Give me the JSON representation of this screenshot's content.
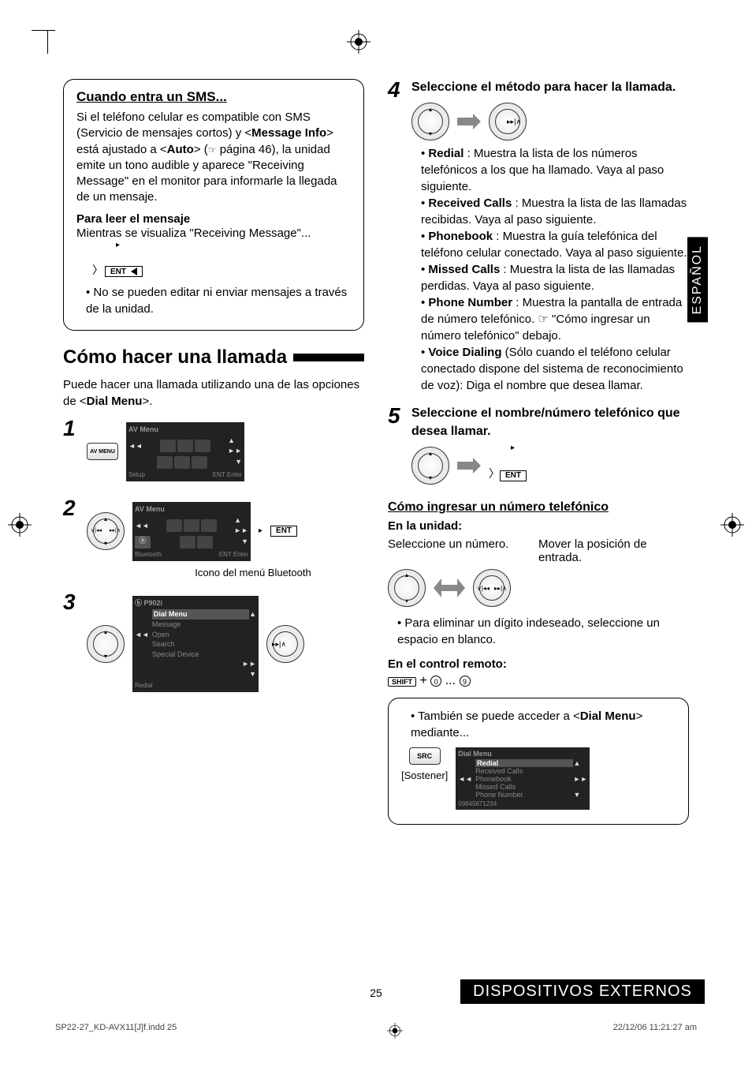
{
  "page_number": "25",
  "side_tab": "ESPAÑOL",
  "footer_band": "DISPOSITIVOS EXTERNOS",
  "print_footer_left": "SP22-27_KD-AVX11[J]f.indd   25",
  "print_footer_right": "22/12/06   11:21:27 am",
  "sms_box": {
    "title": "Cuando entra un SMS...",
    "para": "Si el teléfono celular es compatible con SMS (Servicio de mensajes cortos) y <Message Info> está ajustado a <Auto> (☞ página 46), la unidad emite un tono audible y aparece \"Receiving Message\" en el monitor para informarle la llegada de un mensaje.",
    "sub": "Para leer el mensaje",
    "sub_para": "Mientras se visualiza \"Receiving Message\"...",
    "ent_label": "ENT",
    "bullet": "No se pueden editar ni enviar mensajes a través de la unidad."
  },
  "call_section": {
    "title": "Cómo hacer una llamada",
    "intro": "Puede hacer una llamada utilizando una de las opciones de <Dial Menu>.",
    "bt_caption": "Icono del menú Bluetooth",
    "av_menu_btn": "AV MENU",
    "screen1": {
      "title": "AV Menu",
      "foot_l": "Setup",
      "foot_r": "ENT Enter"
    },
    "screen2": {
      "title": "AV Menu",
      "foot_l": "Bluetooth",
      "foot_r": "ENT Enter"
    },
    "screen3": {
      "device": "P902i",
      "items": [
        "Dial Menu",
        "Message",
        "Open",
        "Search",
        "Special Device"
      ],
      "foot": "Redial"
    }
  },
  "step4": {
    "title": "Seleccione el método para hacer la llamada.",
    "items": [
      {
        "b": "Redial",
        "t": " : Muestra la lista de los números telefónicos a los que ha llamado. Vaya al paso siguiente."
      },
      {
        "b": "Received Calls",
        "t": " : Muestra la lista de las llamadas recibidas. Vaya al paso siguiente."
      },
      {
        "b": "Phonebook",
        "t": " : Muestra la guía telefónica del teléfono celular conectado. Vaya al paso siguiente."
      },
      {
        "b": "Missed Calls",
        "t": " : Muestra la lista de las llamadas perdidas. Vaya al paso siguiente."
      },
      {
        "b": "Phone Number",
        "t": " : Muestra la pantalla de entrada de número telefónico. ☞ \"Cómo ingresar un número telefónico\" debajo."
      },
      {
        "b": "Voice Dialing",
        "t": " (Sólo cuando el teléfono celular conectado dispone del sistema de reconocimiento de voz): Diga el nombre que desea llamar."
      }
    ]
  },
  "step5": {
    "title": "Seleccione el nombre/número telefónico que desea llamar.",
    "ent_label": "ENT"
  },
  "enter_number": {
    "title": "Cómo ingresar un número telefónico",
    "unit_hdr": "En la unidad:",
    "col_l": "Seleccione un número.",
    "col_r": "Mover la posición de entrada.",
    "bullet": "Para eliminar un dígito indeseado, seleccione un espacio en blanco.",
    "remote_hdr": "En el control remoto:",
    "shift": "SHIFT",
    "plus": " + ",
    "n0": "0",
    "dots": "...",
    "n9": "9"
  },
  "also_box": {
    "line": "También se puede acceder a <Dial Menu> mediante...",
    "src": "SRC",
    "hold": "[Sostener]",
    "screen": {
      "title": "Dial Menu",
      "items": [
        "Redial",
        "Received Calls",
        "Phonebook",
        "Missed Calls",
        "Phone Number"
      ],
      "foot": "09845671234"
    }
  }
}
